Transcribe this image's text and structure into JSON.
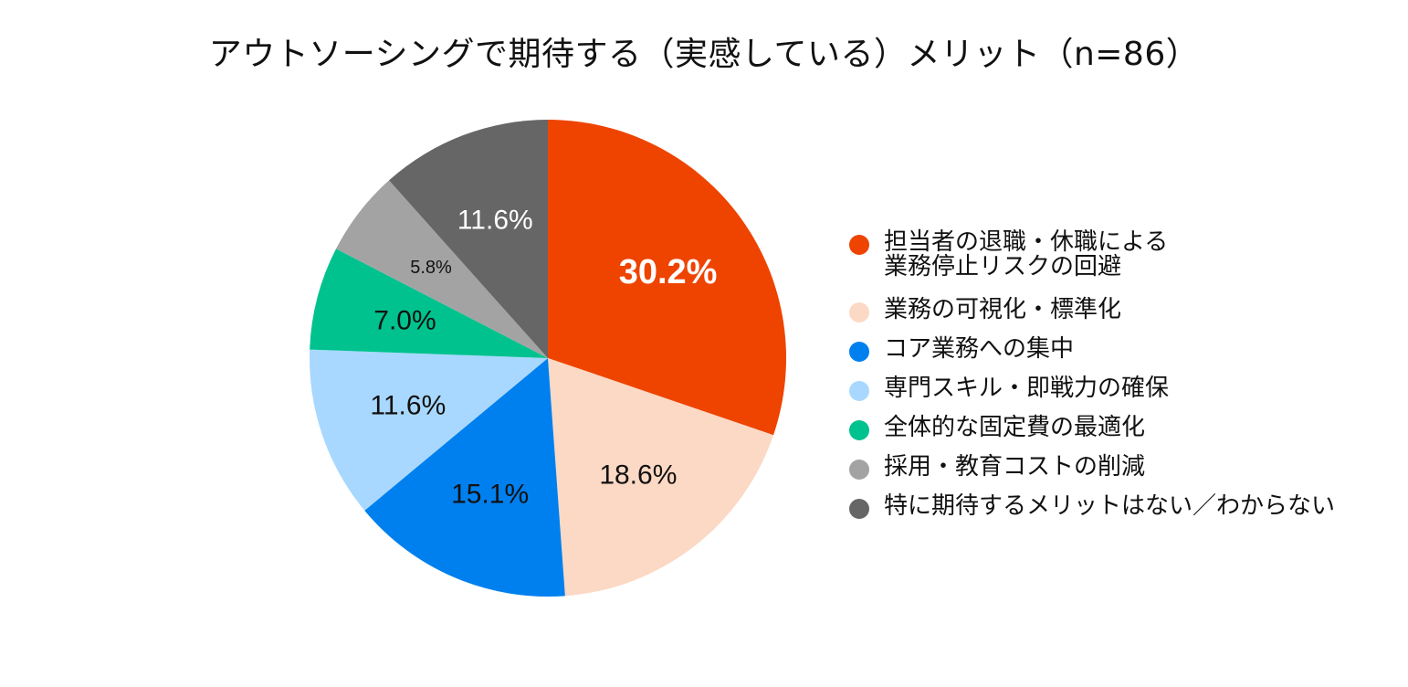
{
  "chart_data": {
    "type": "pie",
    "title": "アウトソーシングで期待する（実感している）メリット（n=86）",
    "start_angle_deg": 0,
    "direction": "clockwise",
    "legend_position": "right",
    "slices": [
      {
        "label": "担当者の退職・休職による業務停止リスクの回避",
        "value": 30.2,
        "display": "30.2%",
        "color": "#EE4400",
        "label_color": "#ffffff",
        "label_bold": true
      },
      {
        "label": "業務の可視化・標準化",
        "value": 18.6,
        "display": "18.6%",
        "color": "#FBD9C4",
        "label_color": "#111111"
      },
      {
        "label": "コア業務への集中",
        "value": 15.1,
        "display": "15.1%",
        "color": "#0080EE",
        "label_color": "#111111"
      },
      {
        "label": "専門スキル・即戦力の確保",
        "value": 11.6,
        "display": "11.6%",
        "color": "#A8D8FF",
        "label_color": "#111111"
      },
      {
        "label": "全体的な固定費の最適化",
        "value": 7.0,
        "display": "7.0%",
        "color": "#00C28E",
        "label_color": "#111111"
      },
      {
        "label": "採用・教育コストの削減",
        "value": 5.8,
        "display": "5.8%",
        "color": "#A3A3A3",
        "label_color": "#111111"
      },
      {
        "label": "特に期待するメリットはない／わからない",
        "value": 11.6,
        "display": "11.6%",
        "color": "#666666",
        "label_color": "#ffffff"
      }
    ]
  },
  "legend": {
    "items": [
      "担当者の退職・休職による\n業務停止リスクの回避",
      "業務の可視化・標準化",
      "コア業務への集中",
      "専門スキル・即戦力の確保",
      "全体的な固定費の最適化",
      "採用・教育コストの削減",
      "特に期待するメリットはない／わからない"
    ]
  }
}
